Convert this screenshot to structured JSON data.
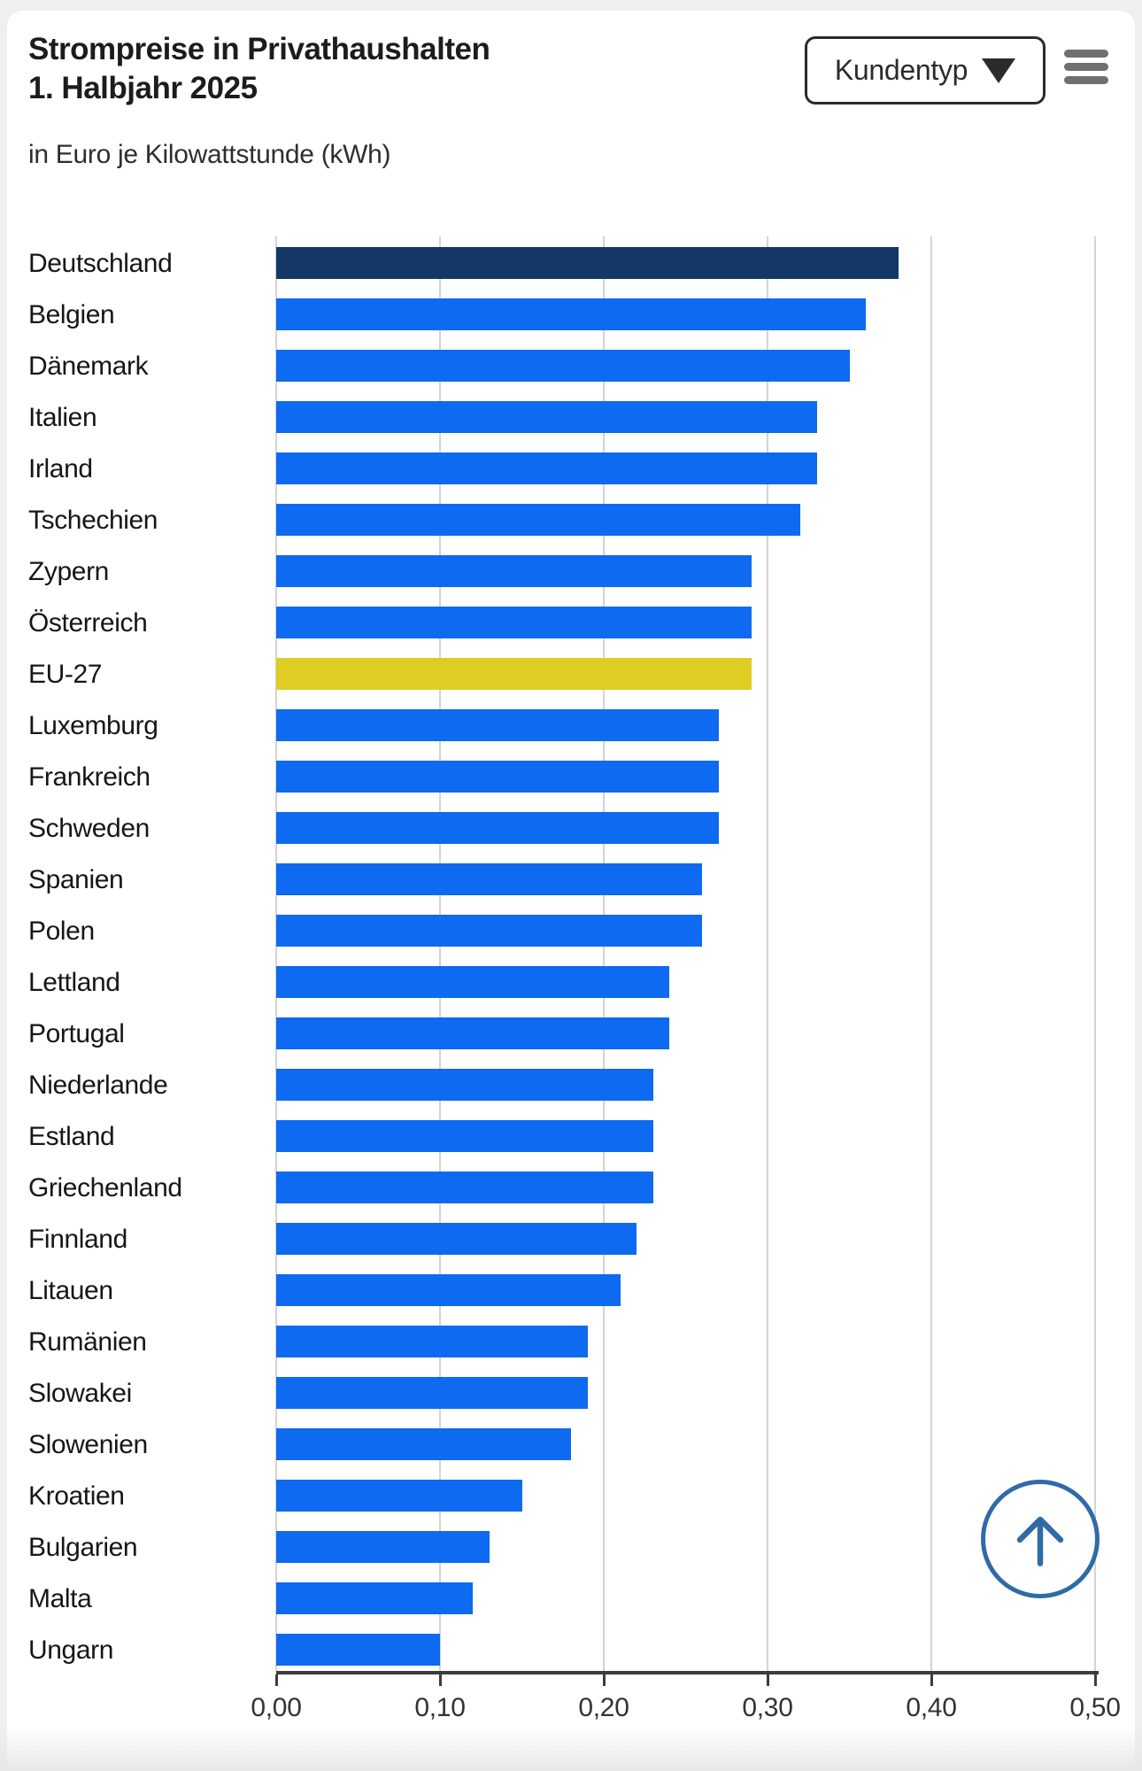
{
  "header": {
    "title_line1": "Strompreise in Privathaushalten",
    "title_line2": "1. Halbjahr 2025",
    "subtitle": "in Euro je Kilowattstunde (kWh)",
    "dropdown": {
      "label": "Kundentyp",
      "arrow_icon": "chevron-down",
      "arrow_glyph": "▼"
    },
    "menu_icon": "hamburger-menu"
  },
  "chart_data": {
    "type": "bar",
    "orientation": "horizontal",
    "title": "Strompreise in Privathaushalten 1. Halbjahr 2025",
    "subtitle": "in Euro je Kilowattstunde (kWh)",
    "unit": "Euro je Kilowattstunde (kWh)",
    "categories": [
      "Deutschland",
      "Belgien",
      "Dänemark",
      "Italien",
      "Irland",
      "Tschechien",
      "Zypern",
      "Österreich",
      "EU-27",
      "Luxemburg",
      "Frankreich",
      "Schweden",
      "Spanien",
      "Polen",
      "Lettland",
      "Portugal",
      "Niederlande",
      "Estland",
      "Griechenland",
      "Finnland",
      "Litauen",
      "Rumänien",
      "Slowakei",
      "Slowenien",
      "Kroatien",
      "Bulgarien",
      "Malta",
      "Ungarn"
    ],
    "values": [
      0.38,
      0.36,
      0.35,
      0.33,
      0.33,
      0.32,
      0.29,
      0.29,
      0.29,
      0.27,
      0.27,
      0.27,
      0.26,
      0.26,
      0.24,
      0.24,
      0.23,
      0.23,
      0.23,
      0.22,
      0.21,
      0.19,
      0.19,
      0.18,
      0.15,
      0.13,
      0.12,
      0.1
    ],
    "xlim": [
      0,
      0.5
    ],
    "x_tick_values": [
      0,
      0.1,
      0.2,
      0.3,
      0.4,
      0.5
    ],
    "x_tick_labels": [
      "0,00",
      "0,10",
      "0,20",
      "0,30",
      "0,40",
      "0,50"
    ],
    "grid": true,
    "legend": false,
    "default_bar_color": "#0e6af0",
    "bar_colors": {
      "Deutschland": "#133866",
      "EU-27": "#e0cd23"
    }
  },
  "colors": {
    "bar_blue": "#0e6af0",
    "bar_navy": "#133866",
    "bar_yellow": "#e0cd23",
    "gridline": "#d4d4d4",
    "axis": "#3c3c3c",
    "scroll_button_blue": "#2f6ba6",
    "text_dark": "#1c1c1c"
  },
  "scroll_button": {
    "icon": "arrow-up"
  }
}
